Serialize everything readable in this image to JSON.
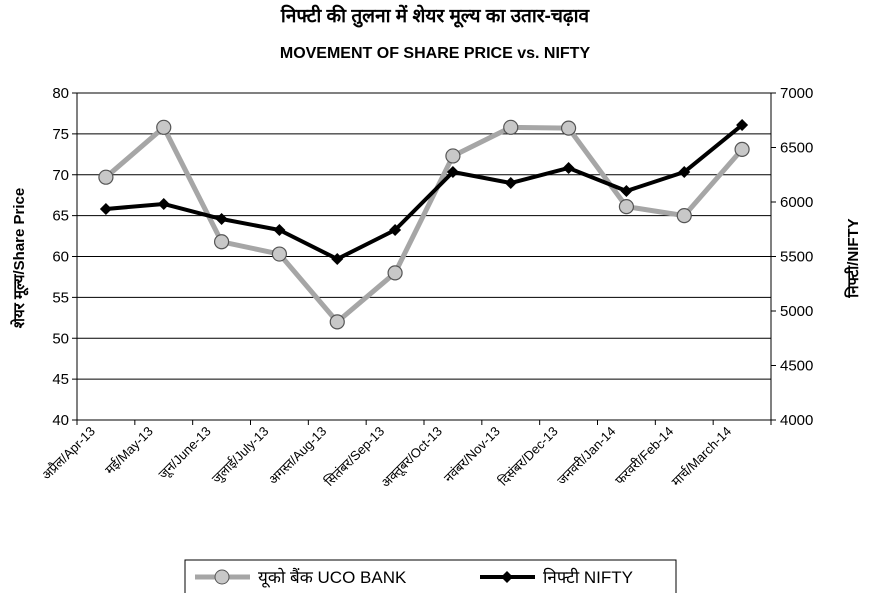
{
  "chart_data": {
    "type": "line",
    "title": "निफ्टी की तुलना में शेयर मूल्य का उतार-चढ़ाव",
    "subtitle": "MOVEMENT OF SHARE PRICE vs. NIFTY",
    "y_label": "शेयर मूल्य/Share Price",
    "y2_label": "निफ्टी/NIFTY",
    "categories": [
      "अप्रैल/Apr-13",
      "मई/May-13",
      "जून/June-13",
      "जुलाई/July-13",
      "अगस्त/Aug-13",
      "सितंबर/Sep-13",
      "अक्तूबर/Oct-13",
      "नवंबर/Nov-13",
      "दिसंबर/Dec-13",
      "जनवरी/Jan-14",
      "फरवरी/Feb-14",
      "मार्च/March-14"
    ],
    "series": [
      {
        "name": "यूको बैंक UCO BANK",
        "color": "#a6a6a6",
        "marker": "circle",
        "values": [
          69.7,
          75.8,
          61.8,
          60.3,
          52.0,
          58.0,
          72.3,
          75.8,
          75.7,
          66.1,
          65.0,
          73.1
        ]
      },
      {
        "name": "निफ्टी NIFTY",
        "color": "#000000",
        "marker": "diamond",
        "axis": "y2",
        "values": [
          5936,
          5982,
          5844,
          5743,
          5477,
          5743,
          6275,
          6174,
          6312,
          6101,
          6275,
          6706
        ]
      }
    ],
    "ylim": [
      40,
      80
    ],
    "yticks": [
      40,
      45,
      50,
      55,
      60,
      65,
      70,
      75,
      80
    ],
    "y2lim": [
      4000,
      7000
    ],
    "y2ticks": [
      4000,
      4500,
      5000,
      5500,
      6000,
      6500,
      7000
    ],
    "grid": true,
    "legend": "bottom"
  }
}
